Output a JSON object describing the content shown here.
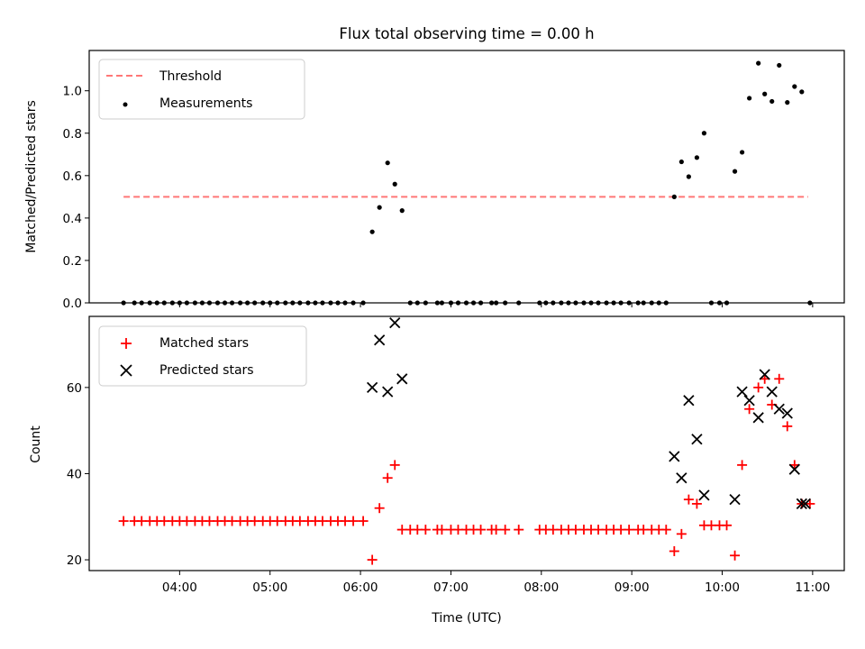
{
  "chart_data": [
    {
      "type": "scatter",
      "title": "Flux total observing time = 0.00 h",
      "xlabel": "",
      "ylabel": "Matched/Predicted stars",
      "xlim": [
        3.0,
        11.35
      ],
      "ylim": [
        0.0,
        1.19
      ],
      "yticks": [
        0.0,
        0.2,
        0.4,
        0.6,
        0.8,
        1.0
      ],
      "ytick_labels": [
        "0.0",
        "0.2",
        "0.4",
        "0.6",
        "0.8",
        "1.0"
      ],
      "legend_position": "upper-left",
      "threshold": {
        "name": "Threshold",
        "value": 0.5,
        "x_range": [
          3.38,
          10.95
        ],
        "color": "#ff7777",
        "style": "dashed"
      },
      "series": [
        {
          "name": "Measurements",
          "color": "#000000",
          "marker": "dot",
          "points": [
            [
              3.38,
              0
            ],
            [
              3.5,
              0
            ],
            [
              3.58,
              0
            ],
            [
              3.67,
              0
            ],
            [
              3.75,
              0
            ],
            [
              3.83,
              0
            ],
            [
              3.92,
              0
            ],
            [
              4.0,
              0
            ],
            [
              4.08,
              0
            ],
            [
              4.17,
              0
            ],
            [
              4.25,
              0
            ],
            [
              4.33,
              0
            ],
            [
              4.42,
              0
            ],
            [
              4.5,
              0
            ],
            [
              4.58,
              0
            ],
            [
              4.67,
              0
            ],
            [
              4.75,
              0
            ],
            [
              4.83,
              0
            ],
            [
              4.92,
              0
            ],
            [
              5.0,
              0
            ],
            [
              5.08,
              0
            ],
            [
              5.17,
              0
            ],
            [
              5.25,
              0
            ],
            [
              5.33,
              0
            ],
            [
              5.42,
              0
            ],
            [
              5.5,
              0
            ],
            [
              5.58,
              0
            ],
            [
              5.67,
              0
            ],
            [
              5.75,
              0
            ],
            [
              5.83,
              0
            ],
            [
              5.92,
              0
            ],
            [
              6.03,
              0
            ],
            [
              6.13,
              0.335
            ],
            [
              6.21,
              0.45
            ],
            [
              6.3,
              0.66
            ],
            [
              6.38,
              0.56
            ],
            [
              6.46,
              0.435
            ],
            [
              6.55,
              0
            ],
            [
              6.63,
              0
            ],
            [
              6.72,
              0
            ],
            [
              6.85,
              0
            ],
            [
              6.9,
              0
            ],
            [
              7.0,
              0
            ],
            [
              7.08,
              0
            ],
            [
              7.17,
              0
            ],
            [
              7.25,
              0
            ],
            [
              7.33,
              0
            ],
            [
              7.45,
              0
            ],
            [
              7.5,
              0
            ],
            [
              7.6,
              0
            ],
            [
              7.75,
              0
            ],
            [
              7.98,
              0
            ],
            [
              8.05,
              0
            ],
            [
              8.13,
              0
            ],
            [
              8.22,
              0
            ],
            [
              8.3,
              0
            ],
            [
              8.38,
              0
            ],
            [
              8.47,
              0
            ],
            [
              8.55,
              0
            ],
            [
              8.63,
              0
            ],
            [
              8.72,
              0
            ],
            [
              8.8,
              0
            ],
            [
              8.88,
              0
            ],
            [
              8.97,
              0
            ],
            [
              9.07,
              0
            ],
            [
              9.13,
              0
            ],
            [
              9.22,
              0
            ],
            [
              9.3,
              0
            ],
            [
              9.38,
              0
            ],
            [
              9.47,
              0.5
            ],
            [
              9.55,
              0.665
            ],
            [
              9.63,
              0.595
            ],
            [
              9.72,
              0.685
            ],
            [
              9.8,
              0.8
            ],
            [
              9.88,
              0
            ],
            [
              9.97,
              0
            ],
            [
              10.05,
              0
            ],
            [
              10.14,
              0.62
            ],
            [
              10.22,
              0.71
            ],
            [
              10.3,
              0.965
            ],
            [
              10.4,
              1.13
            ],
            [
              10.47,
              0.985
            ],
            [
              10.55,
              0.95
            ],
            [
              10.63,
              1.12
            ],
            [
              10.72,
              0.945
            ],
            [
              10.8,
              1.02
            ],
            [
              10.88,
              0.995
            ],
            [
              10.97,
              0
            ]
          ]
        }
      ]
    },
    {
      "type": "scatter",
      "title": "",
      "xlabel": "Time (UTC)",
      "ylabel": "Count",
      "xlim": [
        3.0,
        11.35
      ],
      "ylim": [
        17.5,
        76.5
      ],
      "yticks": [
        20,
        40,
        60
      ],
      "ytick_labels": [
        "20",
        "40",
        "60"
      ],
      "xticks": [
        4,
        5,
        6,
        7,
        8,
        9,
        10,
        11
      ],
      "xtick_labels": [
        "04:00",
        "05:00",
        "06:00",
        "07:00",
        "08:00",
        "09:00",
        "10:00",
        "11:00"
      ],
      "legend_position": "upper-left",
      "series": [
        {
          "name": "Matched stars",
          "color": "#ff0000",
          "marker": "plus",
          "points": [
            [
              3.38,
              29
            ],
            [
              3.5,
              29
            ],
            [
              3.58,
              29
            ],
            [
              3.67,
              29
            ],
            [
              3.75,
              29
            ],
            [
              3.83,
              29
            ],
            [
              3.92,
              29
            ],
            [
              4.0,
              29
            ],
            [
              4.08,
              29
            ],
            [
              4.17,
              29
            ],
            [
              4.25,
              29
            ],
            [
              4.33,
              29
            ],
            [
              4.42,
              29
            ],
            [
              4.5,
              29
            ],
            [
              4.58,
              29
            ],
            [
              4.67,
              29
            ],
            [
              4.75,
              29
            ],
            [
              4.83,
              29
            ],
            [
              4.92,
              29
            ],
            [
              5.0,
              29
            ],
            [
              5.08,
              29
            ],
            [
              5.17,
              29
            ],
            [
              5.25,
              29
            ],
            [
              5.33,
              29
            ],
            [
              5.42,
              29
            ],
            [
              5.5,
              29
            ],
            [
              5.58,
              29
            ],
            [
              5.67,
              29
            ],
            [
              5.75,
              29
            ],
            [
              5.83,
              29
            ],
            [
              5.92,
              29
            ],
            [
              6.03,
              29
            ],
            [
              6.13,
              20
            ],
            [
              6.21,
              32
            ],
            [
              6.3,
              39
            ],
            [
              6.38,
              42
            ],
            [
              6.46,
              27
            ],
            [
              6.55,
              27
            ],
            [
              6.63,
              27
            ],
            [
              6.72,
              27
            ],
            [
              6.85,
              27
            ],
            [
              6.9,
              27
            ],
            [
              7.0,
              27
            ],
            [
              7.08,
              27
            ],
            [
              7.17,
              27
            ],
            [
              7.25,
              27
            ],
            [
              7.33,
              27
            ],
            [
              7.45,
              27
            ],
            [
              7.5,
              27
            ],
            [
              7.6,
              27
            ],
            [
              7.75,
              27
            ],
            [
              7.98,
              27
            ],
            [
              8.05,
              27
            ],
            [
              8.13,
              27
            ],
            [
              8.22,
              27
            ],
            [
              8.3,
              27
            ],
            [
              8.38,
              27
            ],
            [
              8.47,
              27
            ],
            [
              8.55,
              27
            ],
            [
              8.63,
              27
            ],
            [
              8.72,
              27
            ],
            [
              8.8,
              27
            ],
            [
              8.88,
              27
            ],
            [
              8.97,
              27
            ],
            [
              9.07,
              27
            ],
            [
              9.13,
              27
            ],
            [
              9.22,
              27
            ],
            [
              9.3,
              27
            ],
            [
              9.38,
              27
            ],
            [
              9.47,
              22
            ],
            [
              9.55,
              26
            ],
            [
              9.63,
              34
            ],
            [
              9.72,
              33
            ],
            [
              9.8,
              28
            ],
            [
              9.88,
              28
            ],
            [
              9.97,
              28
            ],
            [
              10.05,
              28
            ],
            [
              10.14,
              21
            ],
            [
              10.22,
              42
            ],
            [
              10.3,
              55
            ],
            [
              10.4,
              60
            ],
            [
              10.47,
              62
            ],
            [
              10.55,
              56
            ],
            [
              10.63,
              62
            ],
            [
              10.72,
              51
            ],
            [
              10.8,
              42
            ],
            [
              10.88,
              33
            ],
            [
              10.97,
              33
            ]
          ]
        },
        {
          "name": "Predicted stars",
          "color": "#000000",
          "marker": "x",
          "points": [
            [
              6.13,
              60
            ],
            [
              6.21,
              71
            ],
            [
              6.3,
              59
            ],
            [
              6.38,
              75
            ],
            [
              6.46,
              62
            ],
            [
              9.47,
              44
            ],
            [
              9.55,
              39
            ],
            [
              9.63,
              57
            ],
            [
              9.72,
              48
            ],
            [
              9.8,
              35
            ],
            [
              10.14,
              34
            ],
            [
              10.22,
              59
            ],
            [
              10.3,
              57
            ],
            [
              10.4,
              53
            ],
            [
              10.47,
              63
            ],
            [
              10.55,
              59
            ],
            [
              10.63,
              55
            ],
            [
              10.72,
              54
            ],
            [
              10.8,
              41
            ],
            [
              10.88,
              33
            ],
            [
              10.92,
              33
            ]
          ]
        }
      ]
    }
  ]
}
